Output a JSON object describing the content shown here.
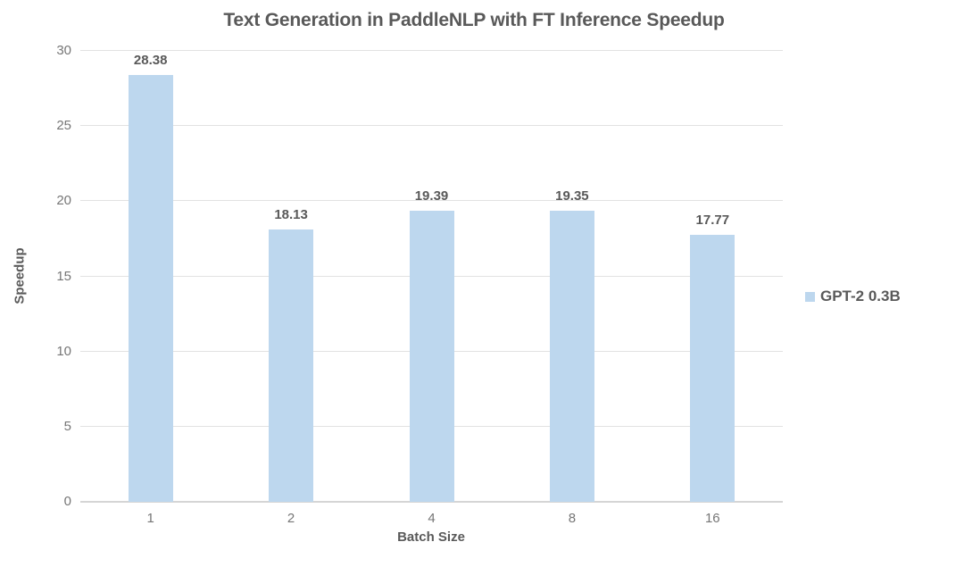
{
  "chart_data": {
    "type": "bar",
    "title": "Text Generation in PaddleNLP with FT Inference Speedup",
    "xlabel": "Batch Size",
    "ylabel": "Speedup",
    "categories": [
      "1",
      "2",
      "4",
      "8",
      "16"
    ],
    "series": [
      {
        "name": "GPT-2 0.3B",
        "values": [
          28.38,
          18.13,
          19.39,
          19.35,
          17.77
        ]
      }
    ],
    "value_labels": [
      "28.38",
      "18.13",
      "19.39",
      "19.35",
      "17.77"
    ],
    "ylim": [
      0,
      30
    ],
    "yticks": [
      0,
      5,
      10,
      15,
      20,
      25,
      30
    ],
    "grid": true,
    "legend_position": "right",
    "colors": {
      "bar": "#BDD7EE",
      "title": "#595959",
      "axis_title": "#595959",
      "tick_label": "#767676",
      "value_label": "#595959",
      "gridline": "#E2E2E2",
      "baseline": "#D5D5D5",
      "background": "#FFFFFF",
      "legend_text": "#595959"
    }
  }
}
